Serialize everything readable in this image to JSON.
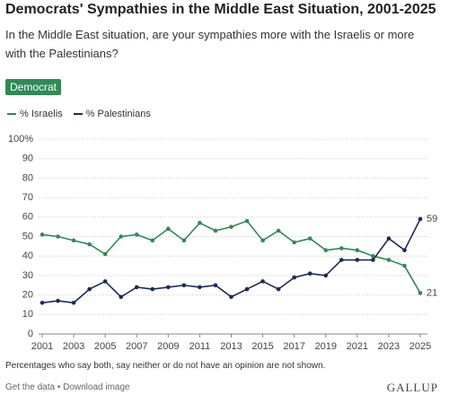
{
  "chart_data": {
    "type": "line",
    "title": "Democrats' Sympathies in the Middle East Situation, 2001-2025",
    "subtitle": "In the Middle East situation, are your sympathies more with the Israelis or more with the Palestinians?",
    "tag": "Democrat",
    "x": [
      2001,
      2002,
      2003,
      2004,
      2005,
      2006,
      2007,
      2008,
      2009,
      2010,
      2011,
      2012,
      2013,
      2014,
      2015,
      2016,
      2017,
      2018,
      2019,
      2020,
      2021,
      2022,
      2023,
      2024,
      2025
    ],
    "series": [
      {
        "name": "% Israelis",
        "color": "#2f8a55",
        "values": [
          51,
          50,
          48,
          46,
          41,
          50,
          51,
          48,
          54,
          48,
          57,
          53,
          55,
          58,
          48,
          53,
          47,
          49,
          43,
          44,
          43,
          40,
          38,
          35,
          21
        ]
      },
      {
        "name": "% Palestinians",
        "color": "#1b2a5c",
        "values": [
          16,
          17,
          16,
          23,
          27,
          19,
          24,
          23,
          24,
          25,
          24,
          25,
          19,
          23,
          27,
          23,
          29,
          31,
          30,
          38,
          38,
          38,
          49,
          43,
          59
        ]
      }
    ],
    "xlim": [
      2001,
      2025
    ],
    "xticks": [
      2001,
      2003,
      2005,
      2007,
      2009,
      2011,
      2013,
      2015,
      2017,
      2019,
      2021,
      2023,
      2025
    ],
    "ylim": [
      0,
      100
    ],
    "yticks": [
      0,
      10,
      20,
      30,
      40,
      50,
      60,
      70,
      80,
      90,
      {
        "value": 100,
        "label": "100%"
      }
    ],
    "grid": true,
    "note": "Percentages who say both, say neither or do not have an opinion are not shown.",
    "links": [
      "Get the data",
      "Download image"
    ],
    "logo": "GALLUP"
  }
}
